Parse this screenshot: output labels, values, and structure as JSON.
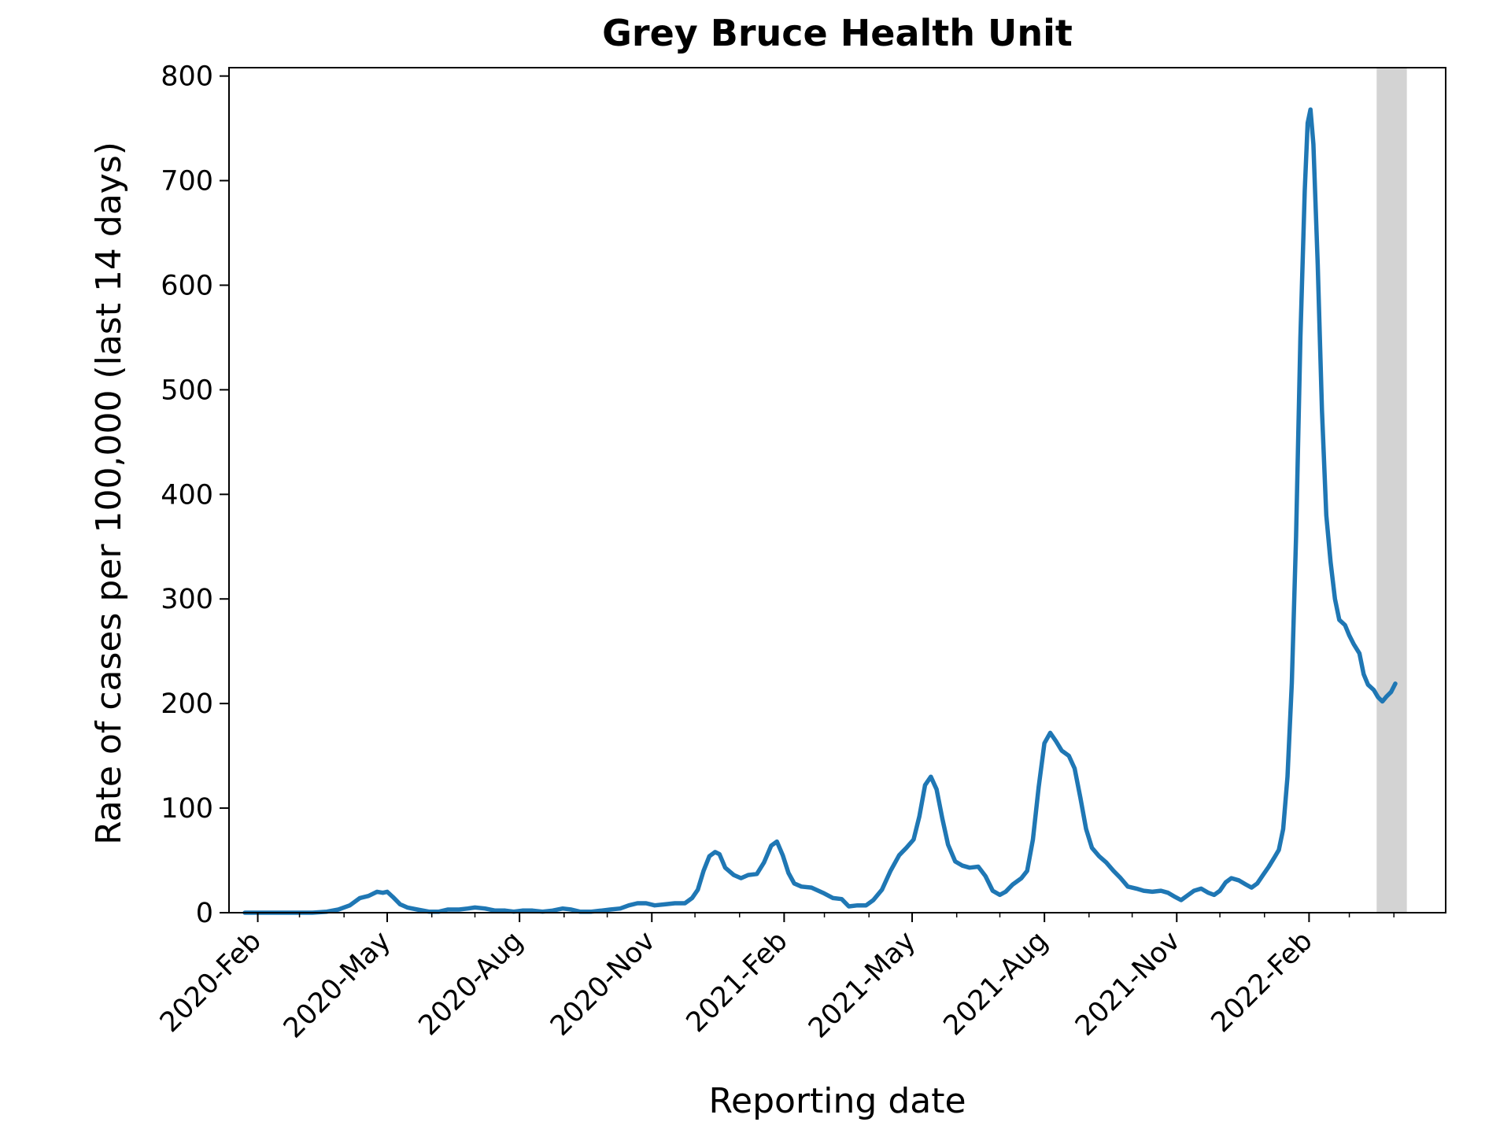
{
  "chart_data": {
    "type": "line",
    "title": "Grey Bruce Health Unit",
    "xlabel": "Reporting date",
    "ylabel": "Rate of cases per 100,000 (last 14 days)",
    "ylim": [
      0,
      808
    ],
    "xlim": [
      "2020-01-12",
      "2022-05-07"
    ],
    "yticks": [
      0,
      100,
      200,
      300,
      400,
      500,
      600,
      700,
      800
    ],
    "xticks": [
      {
        "date": "2020-02-01",
        "label": "2020-Feb"
      },
      {
        "date": "2020-05-01",
        "label": "2020-May"
      },
      {
        "date": "2020-08-01",
        "label": "2020-Aug"
      },
      {
        "date": "2020-11-01",
        "label": "2020-Nov"
      },
      {
        "date": "2021-02-01",
        "label": "2021-Feb"
      },
      {
        "date": "2021-05-01",
        "label": "2021-May"
      },
      {
        "date": "2021-08-01",
        "label": "2021-Aug"
      },
      {
        "date": "2021-11-01",
        "label": "2021-Nov"
      },
      {
        "date": "2022-02-01",
        "label": "2022-Feb"
      }
    ],
    "minor_ticks": [
      "2020-03-01",
      "2020-04-01",
      "2020-06-01",
      "2020-07-01",
      "2020-09-01",
      "2020-10-01",
      "2020-12-01",
      "2021-01-01",
      "2021-03-01",
      "2021-04-01",
      "2021-06-01",
      "2021-07-01",
      "2021-09-01",
      "2021-10-01",
      "2021-12-01",
      "2022-01-01",
      "2022-03-01",
      "2022-04-01"
    ],
    "shaded_region": {
      "start": "2022-03-20",
      "end": "2022-04-10",
      "color": "#d3d3d3"
    },
    "grid": false,
    "series": [
      {
        "color": "#1f77b4",
        "points": [
          [
            "2020-01-23",
            0
          ],
          [
            "2020-02-15",
            0
          ],
          [
            "2020-03-10",
            0
          ],
          [
            "2020-03-20",
            1
          ],
          [
            "2020-03-28",
            3
          ],
          [
            "2020-04-05",
            7
          ],
          [
            "2020-04-12",
            14
          ],
          [
            "2020-04-18",
            16
          ],
          [
            "2020-04-24",
            20
          ],
          [
            "2020-04-28",
            19
          ],
          [
            "2020-05-01",
            20
          ],
          [
            "2020-05-05",
            15
          ],
          [
            "2020-05-10",
            8
          ],
          [
            "2020-05-15",
            5
          ],
          [
            "2020-05-22",
            3
          ],
          [
            "2020-05-30",
            1
          ],
          [
            "2020-06-06",
            1
          ],
          [
            "2020-06-12",
            3
          ],
          [
            "2020-06-20",
            3
          ],
          [
            "2020-06-26",
            4
          ],
          [
            "2020-07-01",
            5
          ],
          [
            "2020-07-08",
            4
          ],
          [
            "2020-07-15",
            2
          ],
          [
            "2020-07-22",
            2
          ],
          [
            "2020-07-28",
            1
          ],
          [
            "2020-08-03",
            2
          ],
          [
            "2020-08-10",
            2
          ],
          [
            "2020-08-17",
            1
          ],
          [
            "2020-08-24",
            2
          ],
          [
            "2020-08-31",
            4
          ],
          [
            "2020-09-06",
            3
          ],
          [
            "2020-09-12",
            1
          ],
          [
            "2020-09-20",
            1
          ],
          [
            "2020-09-27",
            2
          ],
          [
            "2020-10-03",
            3
          ],
          [
            "2020-10-10",
            4
          ],
          [
            "2020-10-16",
            7
          ],
          [
            "2020-10-22",
            9
          ],
          [
            "2020-10-28",
            9
          ],
          [
            "2020-11-03",
            7
          ],
          [
            "2020-11-10",
            8
          ],
          [
            "2020-11-17",
            9
          ],
          [
            "2020-11-24",
            9
          ],
          [
            "2020-11-29",
            14
          ],
          [
            "2020-12-03",
            22
          ],
          [
            "2020-12-07",
            40
          ],
          [
            "2020-12-11",
            54
          ],
          [
            "2020-12-15",
            58
          ],
          [
            "2020-12-18",
            56
          ],
          [
            "2020-12-22",
            43
          ],
          [
            "2020-12-28",
            36
          ],
          [
            "2021-01-02",
            33
          ],
          [
            "2021-01-07",
            36
          ],
          [
            "2021-01-13",
            37
          ],
          [
            "2021-01-18",
            48
          ],
          [
            "2021-01-23",
            64
          ],
          [
            "2021-01-27",
            68
          ],
          [
            "2021-01-31",
            55
          ],
          [
            "2021-02-04",
            38
          ],
          [
            "2021-02-08",
            28
          ],
          [
            "2021-02-13",
            25
          ],
          [
            "2021-02-20",
            24
          ],
          [
            "2021-02-28",
            19
          ],
          [
            "2021-03-07",
            14
          ],
          [
            "2021-03-13",
            13
          ],
          [
            "2021-03-18",
            6
          ],
          [
            "2021-03-24",
            7
          ],
          [
            "2021-03-30",
            7
          ],
          [
            "2021-04-04",
            12
          ],
          [
            "2021-04-10",
            22
          ],
          [
            "2021-04-16",
            40
          ],
          [
            "2021-04-22",
            55
          ],
          [
            "2021-04-27",
            62
          ],
          [
            "2021-05-02",
            70
          ],
          [
            "2021-05-06",
            92
          ],
          [
            "2021-05-10",
            122
          ],
          [
            "2021-05-14",
            130
          ],
          [
            "2021-05-18",
            118
          ],
          [
            "2021-05-22",
            90
          ],
          [
            "2021-05-26",
            65
          ],
          [
            "2021-05-31",
            49
          ],
          [
            "2021-06-05",
            45
          ],
          [
            "2021-06-10",
            43
          ],
          [
            "2021-06-16",
            44
          ],
          [
            "2021-06-21",
            35
          ],
          [
            "2021-06-26",
            21
          ],
          [
            "2021-07-01",
            17
          ],
          [
            "2021-07-05",
            20
          ],
          [
            "2021-07-10",
            27
          ],
          [
            "2021-07-16",
            33
          ],
          [
            "2021-07-20",
            40
          ],
          [
            "2021-07-24",
            70
          ],
          [
            "2021-07-28",
            120
          ],
          [
            "2021-08-01",
            162
          ],
          [
            "2021-08-05",
            172
          ],
          [
            "2021-08-09",
            164
          ],
          [
            "2021-08-13",
            155
          ],
          [
            "2021-08-18",
            150
          ],
          [
            "2021-08-22",
            138
          ],
          [
            "2021-08-26",
            110
          ],
          [
            "2021-08-30",
            80
          ],
          [
            "2021-09-03",
            62
          ],
          [
            "2021-09-08",
            54
          ],
          [
            "2021-09-13",
            48
          ],
          [
            "2021-09-18",
            40
          ],
          [
            "2021-09-23",
            33
          ],
          [
            "2021-09-28",
            25
          ],
          [
            "2021-10-04",
            23
          ],
          [
            "2021-10-09",
            21
          ],
          [
            "2021-10-15",
            20
          ],
          [
            "2021-10-21",
            21
          ],
          [
            "2021-10-26",
            19
          ],
          [
            "2021-10-31",
            15
          ],
          [
            "2021-11-04",
            12
          ],
          [
            "2021-11-08",
            16
          ],
          [
            "2021-11-13",
            21
          ],
          [
            "2021-11-18",
            23
          ],
          [
            "2021-11-23",
            19
          ],
          [
            "2021-11-27",
            17
          ],
          [
            "2021-12-01",
            21
          ],
          [
            "2021-12-05",
            29
          ],
          [
            "2021-12-09",
            33
          ],
          [
            "2021-12-14",
            31
          ],
          [
            "2021-12-19",
            27
          ],
          [
            "2021-12-23",
            24
          ],
          [
            "2021-12-27",
            28
          ],
          [
            "2021-12-31",
            36
          ],
          [
            "2022-01-04",
            44
          ],
          [
            "2022-01-08",
            53
          ],
          [
            "2022-01-11",
            60
          ],
          [
            "2022-01-14",
            80
          ],
          [
            "2022-01-17",
            130
          ],
          [
            "2022-01-20",
            220
          ],
          [
            "2022-01-23",
            360
          ],
          [
            "2022-01-26",
            550
          ],
          [
            "2022-01-29",
            690
          ],
          [
            "2022-01-31",
            755
          ],
          [
            "2022-02-02",
            768
          ],
          [
            "2022-02-04",
            735
          ],
          [
            "2022-02-07",
            620
          ],
          [
            "2022-02-10",
            480
          ],
          [
            "2022-02-13",
            380
          ],
          [
            "2022-02-16",
            335
          ],
          [
            "2022-02-19",
            300
          ],
          [
            "2022-02-22",
            280
          ],
          [
            "2022-02-26",
            275
          ],
          [
            "2022-03-01",
            265
          ],
          [
            "2022-03-04",
            257
          ],
          [
            "2022-03-08",
            248
          ],
          [
            "2022-03-11",
            228
          ],
          [
            "2022-03-14",
            218
          ],
          [
            "2022-03-18",
            213
          ],
          [
            "2022-03-21",
            206
          ],
          [
            "2022-03-24",
            202
          ],
          [
            "2022-03-27",
            207
          ],
          [
            "2022-03-30",
            211
          ],
          [
            "2022-04-02",
            219
          ]
        ]
      }
    ]
  }
}
